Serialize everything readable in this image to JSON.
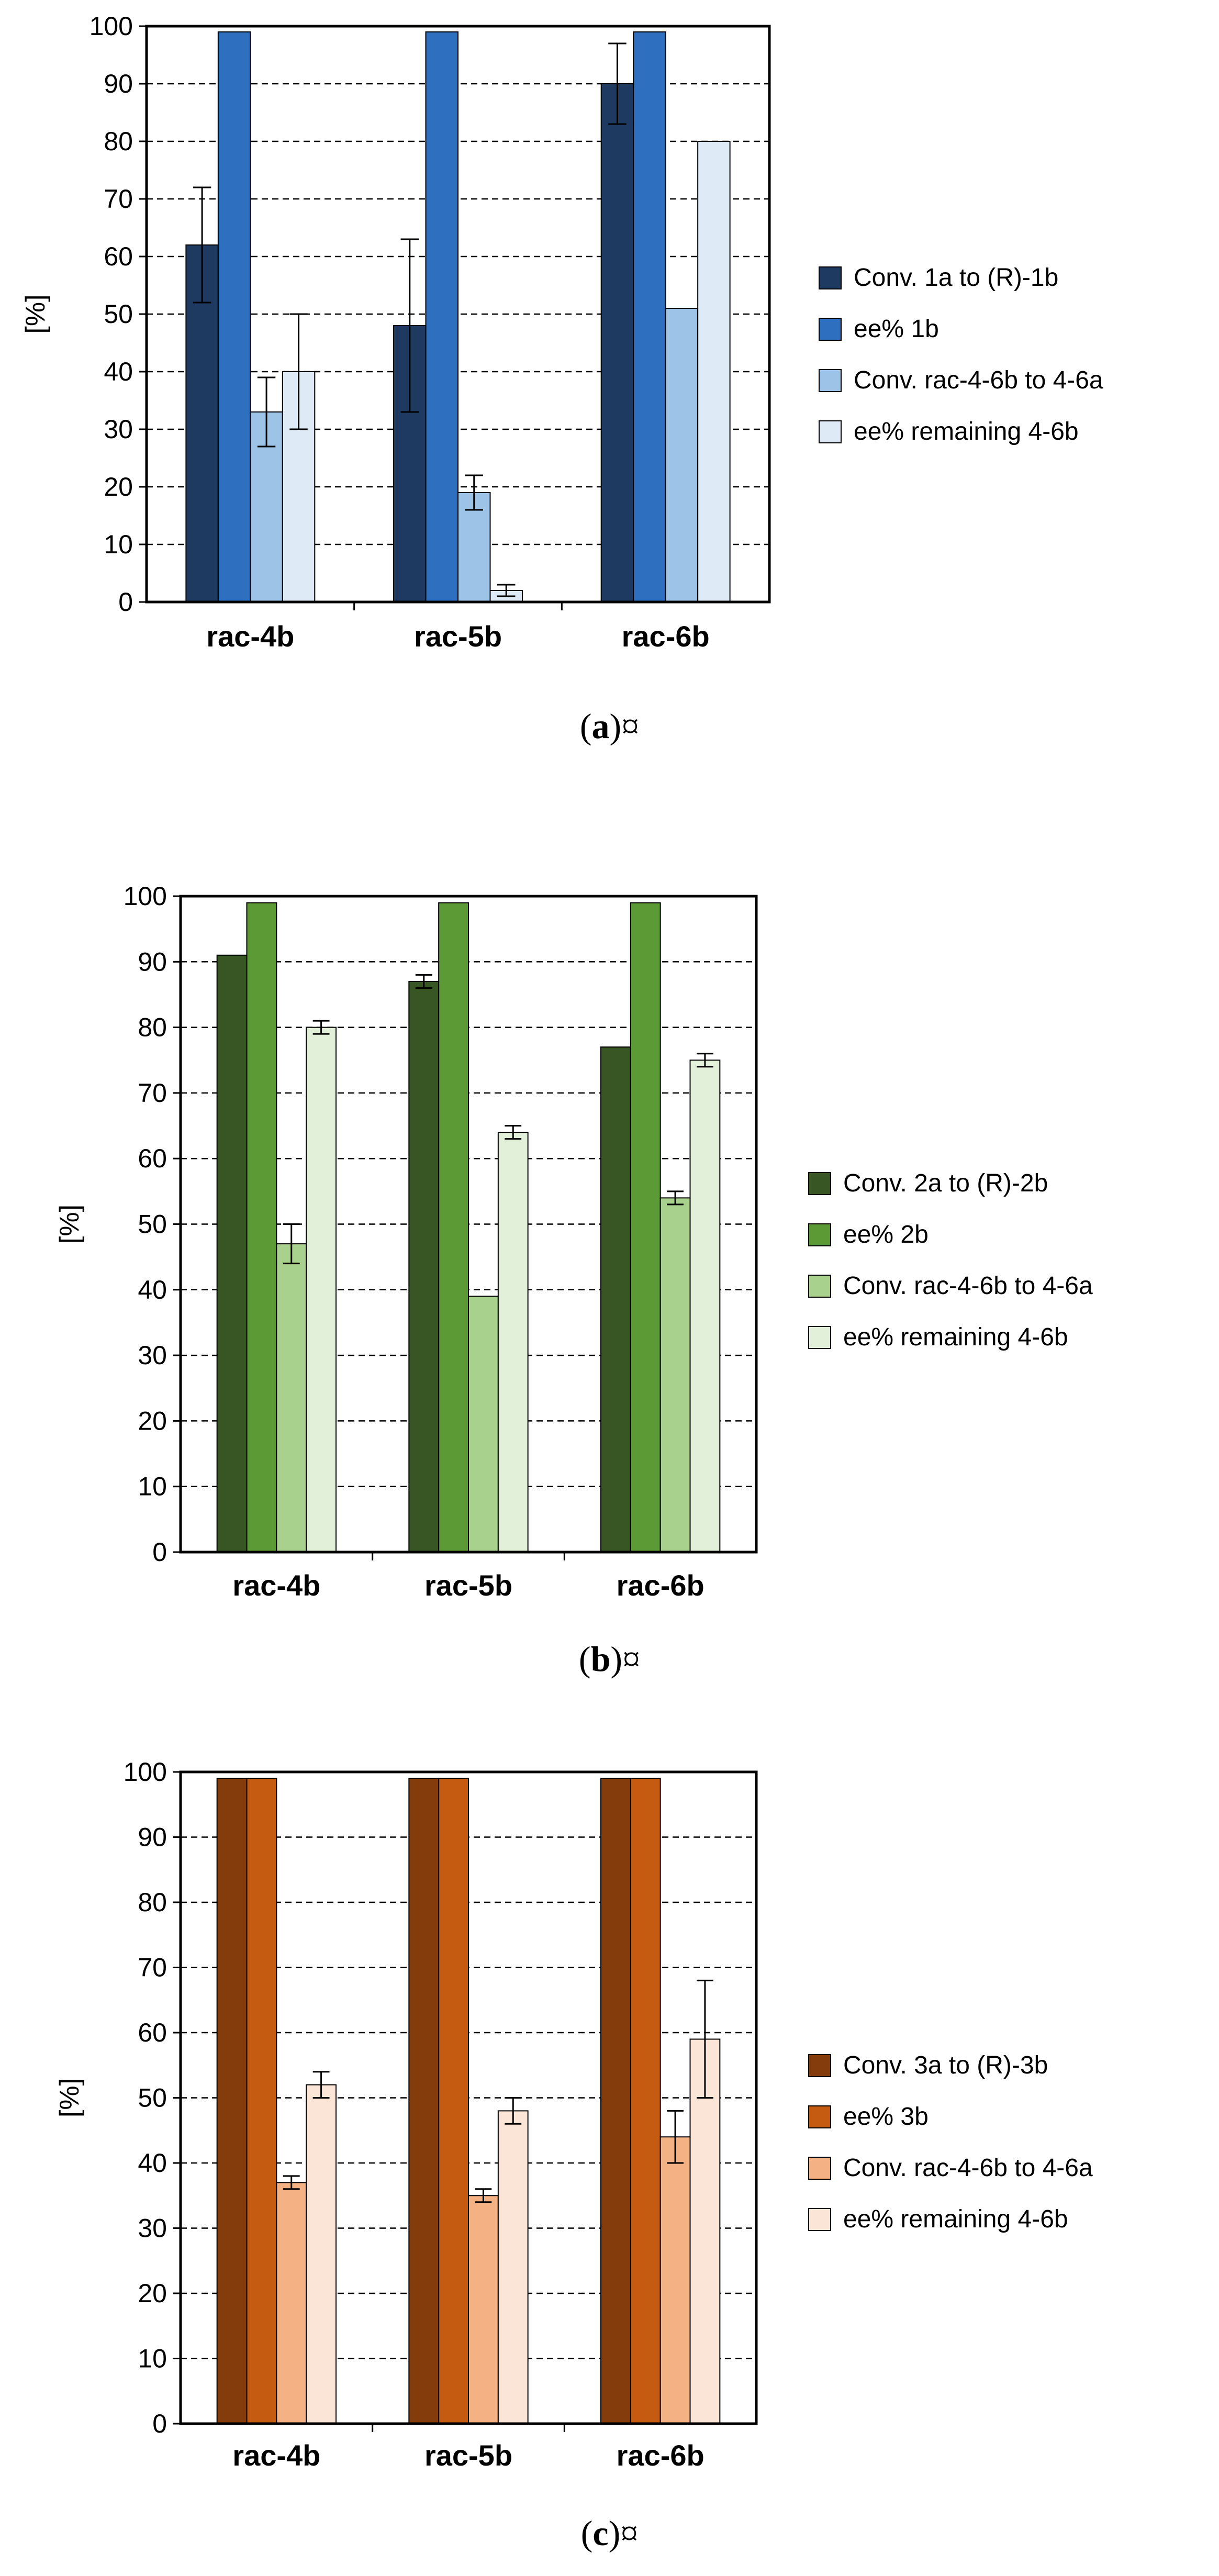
{
  "chart_data": [
    {
      "type": "bar",
      "panel_label": "a",
      "caption_suffix": "¤",
      "ylabel": "[%]",
      "ylim": [
        0,
        100
      ],
      "yticks": [
        0,
        10,
        20,
        30,
        40,
        50,
        60,
        70,
        80,
        90,
        100
      ],
      "grid": true,
      "legend_position": "right",
      "categories": [
        "rac-4b",
        "rac-5b",
        "rac-6b"
      ],
      "series": [
        {
          "name": "Conv. 1a to (R)-1b",
          "color": "#1f3a60",
          "values": [
            62,
            48,
            90
          ],
          "errors": [
            10,
            15,
            7
          ]
        },
        {
          "name": "ee% 1b",
          "color": "#2e6fbf",
          "values": [
            99,
            99,
            99
          ],
          "errors": [
            null,
            null,
            null
          ]
        },
        {
          "name": "Conv. rac-4-6b to 4-6a",
          "color": "#9dc3e6",
          "values": [
            33,
            19,
            51
          ],
          "errors": [
            6,
            3,
            null
          ]
        },
        {
          "name": "ee% remaining 4-6b",
          "color": "#deebf7",
          "values": [
            40,
            2,
            80
          ],
          "errors": [
            10,
            1,
            null
          ]
        }
      ]
    },
    {
      "type": "bar",
      "panel_label": "b",
      "caption_suffix": "¤",
      "ylabel": "[%]",
      "ylim": [
        0,
        100
      ],
      "yticks": [
        0,
        10,
        20,
        30,
        40,
        50,
        60,
        70,
        80,
        90,
        100
      ],
      "grid": true,
      "legend_position": "right",
      "categories": [
        "rac-4b",
        "rac-5b",
        "rac-6b"
      ],
      "series": [
        {
          "name": "Conv. 2a to (R)-2b",
          "color": "#375623",
          "values": [
            91,
            87,
            77
          ],
          "errors": [
            null,
            1,
            null
          ]
        },
        {
          "name": "ee% 2b",
          "color": "#5b9a35",
          "values": [
            99,
            99,
            99
          ],
          "errors": [
            null,
            null,
            null
          ]
        },
        {
          "name": "Conv. rac-4-6b to 4-6a",
          "color": "#a9d18e",
          "values": [
            47,
            39,
            54
          ],
          "errors": [
            3,
            null,
            1
          ]
        },
        {
          "name": "ee% remaining 4-6b",
          "color": "#e2f0d9",
          "values": [
            80,
            64,
            75
          ],
          "errors": [
            1,
            1,
            1
          ]
        }
      ]
    },
    {
      "type": "bar",
      "panel_label": "c",
      "caption_suffix": "¤",
      "ylabel": "[%]",
      "ylim": [
        0,
        100
      ],
      "yticks": [
        0,
        10,
        20,
        30,
        40,
        50,
        60,
        70,
        80,
        90,
        100
      ],
      "grid": true,
      "legend_position": "right",
      "categories": [
        "rac-4b",
        "rac-5b",
        "rac-6b"
      ],
      "series": [
        {
          "name": "Conv. 3a to (R)-3b",
          "color": "#843c0c",
          "values": [
            99,
            99,
            99
          ],
          "errors": [
            null,
            null,
            null
          ]
        },
        {
          "name": "ee% 3b",
          "color": "#c55a11",
          "values": [
            99,
            99,
            99
          ],
          "errors": [
            null,
            null,
            null
          ]
        },
        {
          "name": "Conv. rac-4-6b to 4-6a",
          "color": "#f4b183",
          "values": [
            37,
            35,
            44
          ],
          "errors": [
            1,
            1,
            4
          ]
        },
        {
          "name": "ee% remaining 4-6b",
          "color": "#fbe5d6",
          "values": [
            52,
            48,
            59
          ],
          "errors": [
            2,
            2,
            9
          ]
        }
      ]
    }
  ]
}
